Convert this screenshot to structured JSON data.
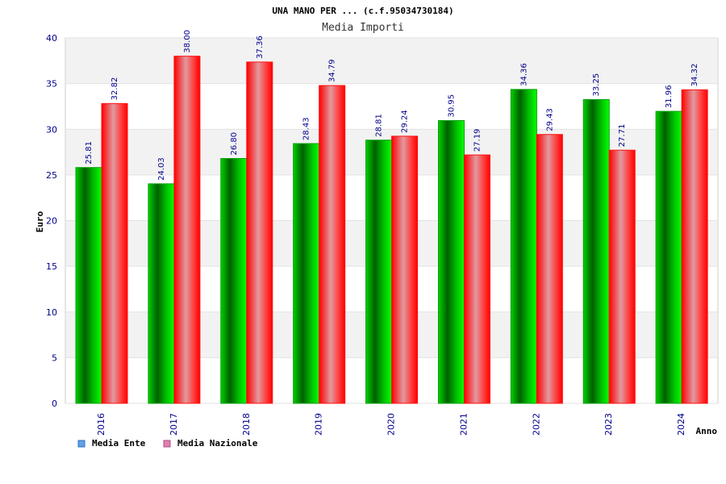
{
  "chart_data": {
    "type": "bar",
    "title": "UNA MANO PER ... (c.f.95034730184)",
    "subtitle": "Media Importi",
    "xlabel": "Anno",
    "ylabel": "Euro",
    "ylim": [
      0,
      40
    ],
    "yticks": [
      0,
      5,
      10,
      15,
      20,
      25,
      30,
      35,
      40
    ],
    "grid": true,
    "legend_position": "bottom-left",
    "categories": [
      "2016",
      "2017",
      "2018",
      "2019",
      "2020",
      "2021",
      "2022",
      "2023",
      "2024"
    ],
    "series": [
      {
        "name": "Media Ente",
        "color": "#00b000",
        "legend_color": "#5fa0e6",
        "values": [
          25.81,
          24.03,
          26.8,
          28.43,
          28.81,
          30.95,
          34.36,
          33.25,
          31.96
        ],
        "labels": [
          "25.81",
          "24.03",
          "26.80",
          "28.43",
          "28.81",
          "30.95",
          "34.36",
          "33.25",
          "31.96"
        ]
      },
      {
        "name": "Media Nazionale",
        "color": "#ff0000",
        "legend_color": "#e080b0",
        "values": [
          32.82,
          38.0,
          37.36,
          34.79,
          29.24,
          27.19,
          29.43,
          27.71,
          34.32
        ],
        "labels": [
          "32.82",
          "38.00",
          "37.36",
          "34.79",
          "29.24",
          "27.19",
          "29.43",
          "27.71",
          "34.32"
        ]
      }
    ]
  }
}
